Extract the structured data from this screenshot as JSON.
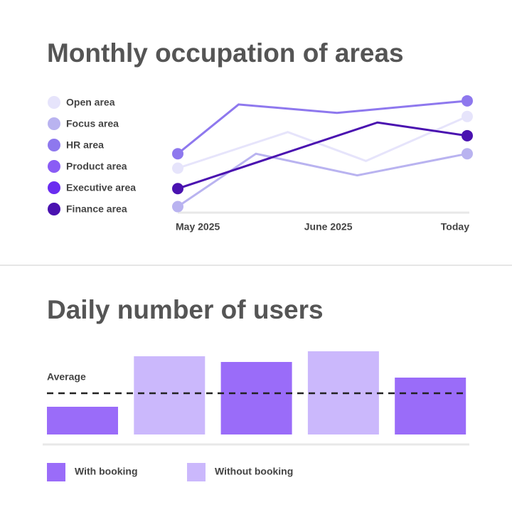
{
  "chart_data": [
    {
      "type": "line",
      "title": "Monthly occupation of areas",
      "xlim": [
        0,
        100
      ],
      "ylim": [
        0,
        100
      ],
      "xticks": [
        {
          "value": 0,
          "label": "May 2025"
        },
        {
          "value": 52,
          "label": "June 2025"
        },
        {
          "value": 100,
          "label": "Today"
        }
      ],
      "series": [
        {
          "name": "Open area",
          "color": "#e6e4fb",
          "x": [
            0,
            38,
            65,
            100
          ],
          "values": [
            37,
            67,
            43,
            80
          ]
        },
        {
          "name": "Focus area",
          "color": "#b9b3f0",
          "x": [
            0,
            27,
            62,
            100
          ],
          "values": [
            5,
            49,
            31,
            49
          ]
        },
        {
          "name": "HR area",
          "color": "#8e78ee",
          "x": [
            0,
            21,
            55,
            100
          ],
          "values": [
            49,
            90,
            83,
            93
          ]
        },
        {
          "name": "Product area",
          "color": "#8a5cf5",
          "x": [],
          "values": []
        },
        {
          "name": "Executive area",
          "color": "#6a2cf0",
          "x": [],
          "values": []
        },
        {
          "name": "Finance area",
          "color": "#4a12b0",
          "x": [
            0,
            69,
            100
          ],
          "values": [
            20,
            75,
            64
          ]
        }
      ]
    },
    {
      "type": "bar",
      "title": "Daily number of users",
      "categories": [
        null,
        null,
        null,
        null,
        null
      ],
      "ylim": [
        0,
        120
      ],
      "average": {
        "label": "Average",
        "value": 58
      },
      "series": [
        {
          "name": "With booking",
          "color": "#9a6cf9",
          "values": [
            39,
            null,
            102,
            null,
            80
          ]
        },
        {
          "name": "Without booking",
          "color": "#cbb8fc",
          "values": [
            null,
            110,
            null,
            117,
            null
          ]
        }
      ]
    }
  ]
}
